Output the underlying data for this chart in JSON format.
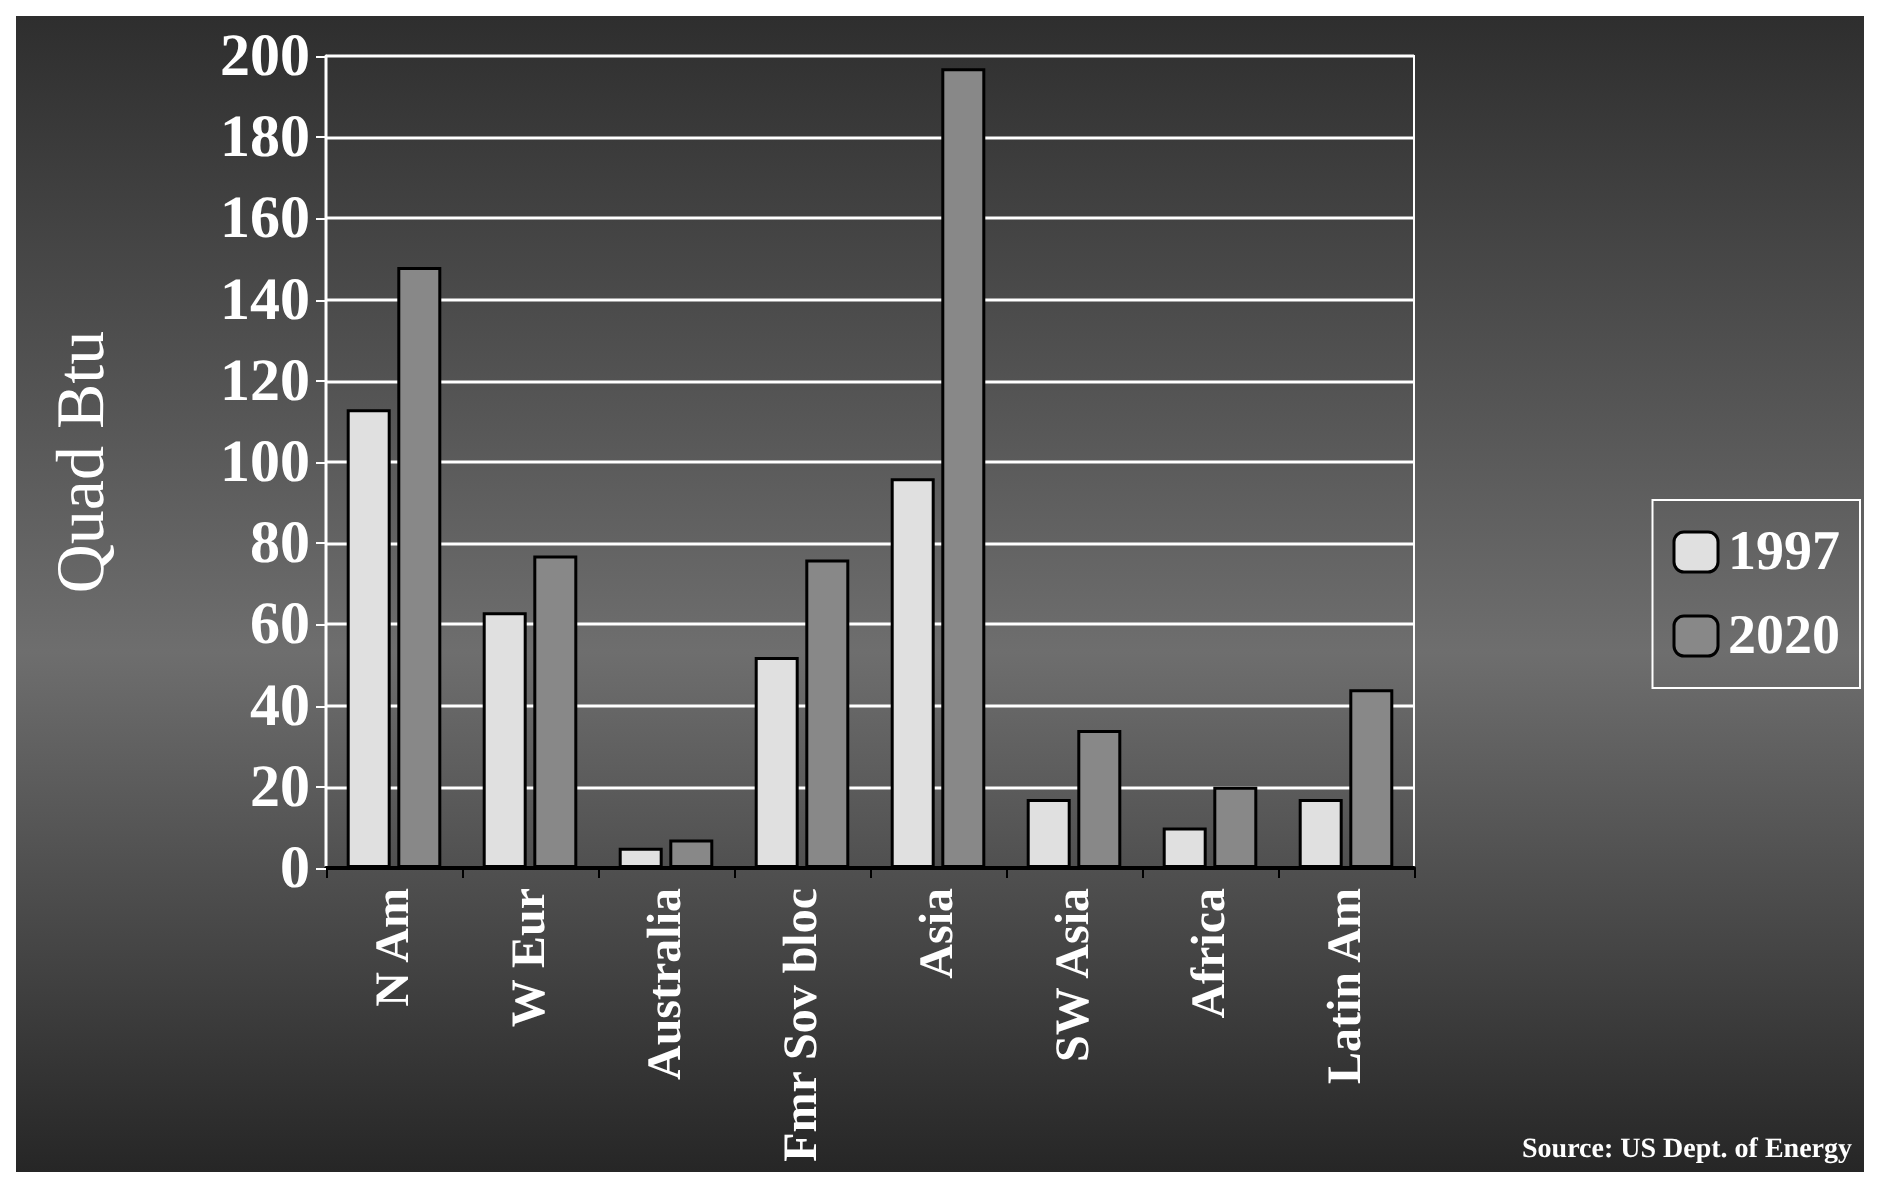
{
  "chart_data": {
    "type": "bar",
    "ylabel": "Quad Btu",
    "categories": [
      "N Am",
      "W Eur",
      "Australia",
      "Fmr Sov bloc",
      "Asia",
      "SW Asia",
      "Africa",
      "Latin Am"
    ],
    "series": [
      {
        "name": "1997",
        "color": "#e0e0e0",
        "values": [
          113,
          63,
          5,
          52,
          96,
          17,
          10,
          17
        ]
      },
      {
        "name": "2020",
        "color": "#888888",
        "values": [
          148,
          77,
          7,
          76,
          197,
          34,
          20,
          44
        ]
      }
    ],
    "ylim": [
      0,
      200
    ],
    "yticks": [
      0,
      20,
      40,
      60,
      80,
      100,
      120,
      140,
      160,
      180,
      200
    ],
    "grid": "y",
    "legend": "right",
    "annotations": [
      "Source: US Dept. of Energy"
    ]
  }
}
